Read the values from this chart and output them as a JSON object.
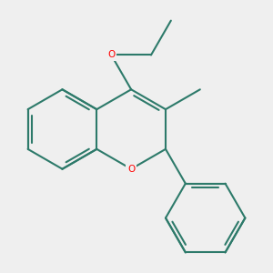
{
  "background_color": "#efefef",
  "bond_color": "#2d7a6a",
  "oxygen_color": "#ff0000",
  "line_width": 1.5,
  "figsize": [
    3.0,
    3.0
  ],
  "dpi": 100,
  "S": 0.72
}
